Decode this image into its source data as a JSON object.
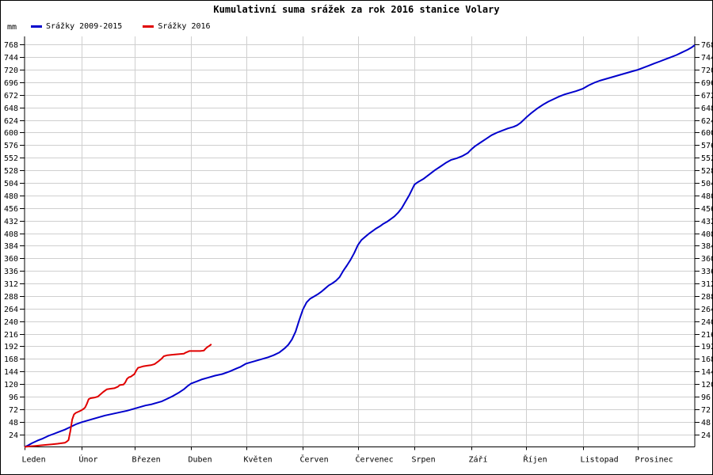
{
  "title": "Kumulativní suma srážek za rok 2016 stanice Volary",
  "y_axis_unit": "mm",
  "legend": [
    {
      "label": "Srážky 2009-2015",
      "color": "#0000cc"
    },
    {
      "label": "Srážky 2016",
      "color": "#e00000"
    }
  ],
  "chart_data": {
    "type": "line",
    "title": "Kumulativní suma srážek za rok 2016 stanice Volary",
    "xlabel": "",
    "ylabel": "mm",
    "ylim": [
      0,
      768
    ],
    "y_tick_step": 24,
    "grid": true,
    "legend_position": "top-left",
    "days_in_year": 366,
    "x_months": [
      "Leden",
      "Únor",
      "Březen",
      "Duben",
      "Květen",
      "Červen",
      "Červenec",
      "Srpen",
      "Září",
      "Říjen",
      "Listopad",
      "Prosinec"
    ],
    "month_start_days": [
      0,
      31,
      60,
      91,
      121,
      152,
      182,
      213,
      244,
      274,
      305,
      335
    ],
    "y_ticks": [
      24,
      48,
      72,
      96,
      120,
      144,
      168,
      192,
      216,
      240,
      264,
      288,
      312,
      336,
      360,
      384,
      408,
      432,
      456,
      480,
      504,
      528,
      552,
      576,
      600,
      624,
      648,
      672,
      696,
      720,
      744,
      768
    ],
    "series": [
      {
        "name": "Srážky 2009-2015",
        "color": "#0000cc",
        "points": [
          [
            0,
            0
          ],
          [
            2,
            3
          ],
          [
            4,
            7
          ],
          [
            7,
            12
          ],
          [
            10,
            16
          ],
          [
            13,
            21
          ],
          [
            16,
            25
          ],
          [
            19,
            29
          ],
          [
            22,
            33
          ],
          [
            25,
            38
          ],
          [
            28,
            43
          ],
          [
            31,
            47
          ],
          [
            34,
            50
          ],
          [
            37,
            53
          ],
          [
            40,
            56
          ],
          [
            44,
            60
          ],
          [
            48,
            63
          ],
          [
            52,
            66
          ],
          [
            56,
            69
          ],
          [
            60,
            73
          ],
          [
            63,
            76
          ],
          [
            66,
            79
          ],
          [
            69,
            81
          ],
          [
            72,
            84
          ],
          [
            75,
            87
          ],
          [
            78,
            92
          ],
          [
            81,
            97
          ],
          [
            84,
            103
          ],
          [
            87,
            110
          ],
          [
            89,
            116
          ],
          [
            91,
            121
          ],
          [
            94,
            125
          ],
          [
            97,
            129
          ],
          [
            100,
            132
          ],
          [
            104,
            136
          ],
          [
            108,
            139
          ],
          [
            112,
            144
          ],
          [
            116,
            150
          ],
          [
            118,
            153
          ],
          [
            121,
            159
          ],
          [
            124,
            162
          ],
          [
            127,
            165
          ],
          [
            130,
            168
          ],
          [
            133,
            171
          ],
          [
            136,
            175
          ],
          [
            139,
            180
          ],
          [
            142,
            188
          ],
          [
            144,
            195
          ],
          [
            146,
            205
          ],
          [
            148,
            220
          ],
          [
            150,
            242
          ],
          [
            152,
            262
          ],
          [
            154,
            276
          ],
          [
            156,
            283
          ],
          [
            158,
            287
          ],
          [
            160,
            291
          ],
          [
            162,
            296
          ],
          [
            164,
            302
          ],
          [
            166,
            308
          ],
          [
            168,
            312
          ],
          [
            170,
            317
          ],
          [
            172,
            324
          ],
          [
            174,
            336
          ],
          [
            176,
            346
          ],
          [
            178,
            357
          ],
          [
            180,
            370
          ],
          [
            182,
            385
          ],
          [
            184,
            395
          ],
          [
            186,
            401
          ],
          [
            188,
            407
          ],
          [
            190,
            412
          ],
          [
            192,
            417
          ],
          [
            194,
            421
          ],
          [
            196,
            426
          ],
          [
            198,
            430
          ],
          [
            200,
            435
          ],
          [
            202,
            440
          ],
          [
            204,
            447
          ],
          [
            206,
            456
          ],
          [
            208,
            468
          ],
          [
            210,
            480
          ],
          [
            212,
            494
          ],
          [
            213,
            501
          ],
          [
            215,
            506
          ],
          [
            218,
            512
          ],
          [
            221,
            520
          ],
          [
            224,
            528
          ],
          [
            227,
            535
          ],
          [
            230,
            542
          ],
          [
            233,
            548
          ],
          [
            236,
            551
          ],
          [
            239,
            555
          ],
          [
            242,
            561
          ],
          [
            244,
            568
          ],
          [
            246,
            574
          ],
          [
            249,
            581
          ],
          [
            252,
            588
          ],
          [
            255,
            595
          ],
          [
            258,
            600
          ],
          [
            261,
            604
          ],
          [
            264,
            608
          ],
          [
            267,
            611
          ],
          [
            269,
            614
          ],
          [
            271,
            619
          ],
          [
            274,
            629
          ],
          [
            277,
            638
          ],
          [
            280,
            646
          ],
          [
            283,
            653
          ],
          [
            286,
            659
          ],
          [
            289,
            664
          ],
          [
            292,
            669
          ],
          [
            295,
            673
          ],
          [
            298,
            676
          ],
          [
            301,
            679
          ],
          [
            305,
            684
          ],
          [
            308,
            690
          ],
          [
            311,
            695
          ],
          [
            314,
            699
          ],
          [
            317,
            702
          ],
          [
            320,
            705
          ],
          [
            323,
            708
          ],
          [
            326,
            711
          ],
          [
            329,
            714
          ],
          [
            332,
            717
          ],
          [
            335,
            720
          ],
          [
            338,
            724
          ],
          [
            341,
            728
          ],
          [
            344,
            732
          ],
          [
            347,
            736
          ],
          [
            350,
            740
          ],
          [
            353,
            744
          ],
          [
            356,
            748
          ],
          [
            359,
            753
          ],
          [
            362,
            758
          ],
          [
            364,
            762
          ],
          [
            366,
            767
          ]
        ]
      },
      {
        "name": "Srážky 2016",
        "color": "#e00000",
        "points": [
          [
            0,
            0
          ],
          [
            3,
            1
          ],
          [
            6,
            2
          ],
          [
            9,
            3
          ],
          [
            12,
            4
          ],
          [
            15,
            5
          ],
          [
            18,
            6
          ],
          [
            20,
            7
          ],
          [
            22,
            8
          ],
          [
            23,
            10
          ],
          [
            24,
            13
          ],
          [
            25,
            30
          ],
          [
            26,
            52
          ],
          [
            27,
            62
          ],
          [
            28,
            65
          ],
          [
            30,
            68
          ],
          [
            31,
            70
          ],
          [
            32,
            72
          ],
          [
            33,
            75
          ],
          [
            34,
            82
          ],
          [
            35,
            91
          ],
          [
            36,
            93
          ],
          [
            38,
            94
          ],
          [
            40,
            96
          ],
          [
            41,
            99
          ],
          [
            43,
            105
          ],
          [
            45,
            110
          ],
          [
            47,
            111
          ],
          [
            49,
            112
          ],
          [
            51,
            115
          ],
          [
            52,
            118
          ],
          [
            54,
            119
          ],
          [
            55,
            123
          ],
          [
            56,
            130
          ],
          [
            57,
            133
          ],
          [
            58,
            134
          ],
          [
            60,
            139
          ],
          [
            61,
            146
          ],
          [
            62,
            151
          ],
          [
            63,
            152
          ],
          [
            65,
            154
          ],
          [
            67,
            155
          ],
          [
            69,
            156
          ],
          [
            71,
            158
          ],
          [
            73,
            163
          ],
          [
            75,
            169
          ],
          [
            76,
            173
          ],
          [
            78,
            175
          ],
          [
            81,
            176
          ],
          [
            84,
            177
          ],
          [
            87,
            178
          ],
          [
            88,
            180
          ],
          [
            90,
            183
          ],
          [
            93,
            183
          ],
          [
            96,
            183
          ],
          [
            98,
            184
          ],
          [
            99,
            188
          ],
          [
            100,
            191
          ],
          [
            101,
            193
          ],
          [
            102,
            196
          ]
        ]
      }
    ]
  }
}
